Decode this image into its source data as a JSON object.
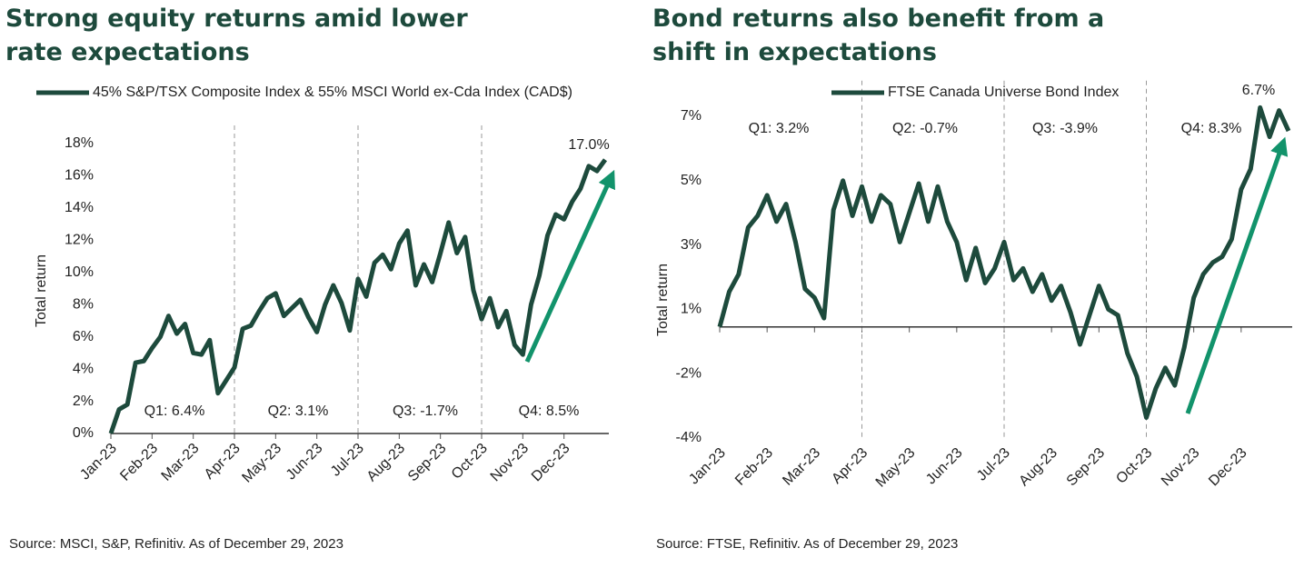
{
  "chart_data": [
    {
      "type": "line",
      "title": "Strong equity returns amid lower rate expectations",
      "ylabel": "Total return",
      "xlim": [
        0,
        12
      ],
      "xticks": [
        {
          "value": 0,
          "label": "Jan-23"
        },
        {
          "value": 1,
          "label": "Feb-23"
        },
        {
          "value": 2,
          "label": "Mar-23"
        },
        {
          "value": 3,
          "label": "Apr-23"
        },
        {
          "value": 4,
          "label": "May-23"
        },
        {
          "value": 5,
          "label": "Jun-23"
        },
        {
          "value": 6,
          "label": "Jul-23"
        },
        {
          "value": 7,
          "label": "Aug-23"
        },
        {
          "value": 8,
          "label": "Sep-23"
        },
        {
          "value": 9,
          "label": "Oct-23"
        },
        {
          "value": 10,
          "label": "Nov-23"
        },
        {
          "value": 11,
          "label": "Dec-23"
        }
      ],
      "ylim": [
        0,
        18
      ],
      "yticks": [
        {
          "value": 0,
          "label": "0%"
        },
        {
          "value": 2,
          "label": "2%"
        },
        {
          "value": 4,
          "label": "4%"
        },
        {
          "value": 6,
          "label": "6%"
        },
        {
          "value": 8,
          "label": "8%"
        },
        {
          "value": 10,
          "label": "10%"
        },
        {
          "value": 12,
          "label": "12%"
        },
        {
          "value": 14,
          "label": "14%"
        },
        {
          "value": 16,
          "label": "16%"
        },
        {
          "value": 18,
          "label": "18%"
        }
      ],
      "series": [
        {
          "name": "45% S&P/TSX Composite Index & 55% MSCI World ex-Cda Index (CAD$)",
          "color": "#1d4a3c",
          "x": [
            0,
            0.2,
            0.4,
            0.6,
            0.8,
            1,
            1.2,
            1.4,
            1.6,
            1.8,
            2,
            2.2,
            2.4,
            2.6,
            2.8,
            3,
            3.2,
            3.4,
            3.6,
            3.8,
            4,
            4.2,
            4.4,
            4.6,
            4.8,
            5,
            5.2,
            5.4,
            5.6,
            5.8,
            6,
            6.2,
            6.4,
            6.6,
            6.8,
            7,
            7.2,
            7.4,
            7.6,
            7.8,
            8,
            8.2,
            8.4,
            8.6,
            8.8,
            9,
            9.2,
            9.4,
            9.6,
            9.8,
            10,
            10.2,
            10.4,
            10.6,
            10.8,
            11,
            11.2,
            11.4,
            11.6,
            11.8,
            12
          ],
          "values": [
            0,
            1.5,
            1.8,
            4.4,
            4.5,
            5.3,
            6.0,
            7.3,
            6.2,
            6.8,
            5.0,
            4.9,
            5.8,
            2.5,
            3.3,
            4.1,
            6.5,
            6.7,
            7.6,
            8.4,
            8.7,
            7.3,
            7.8,
            8.3,
            7.2,
            6.3,
            8.0,
            9.2,
            8.1,
            6.4,
            9.6,
            8.5,
            10.6,
            11.1,
            10.2,
            11.8,
            12.6,
            9.2,
            10.5,
            9.4,
            11.2,
            13.1,
            11.2,
            12.2,
            8.9,
            7.1,
            8.4,
            6.6,
            7.6,
            5.5,
            4.9,
            8.0,
            9.8,
            12.3,
            13.6,
            13.3,
            14.4,
            15.2,
            16.6,
            16.3,
            17.0
          ]
        }
      ],
      "annotations": [
        "Q1: 6.4%",
        "Q2: 3.1%",
        "Q3: -1.7%",
        "Q4: 8.5%",
        "17.0%"
      ],
      "source": "Source: MSCI, S&P, Refinitiv. As of December 29, 2023"
    },
    {
      "type": "line",
      "title": "Bond returns also benefit from a shift in expectations",
      "ylabel": "Total return",
      "xlim": [
        0,
        12
      ],
      "xticks": [
        {
          "value": 0,
          "label": "Jan-23"
        },
        {
          "value": 1,
          "label": "Feb-23"
        },
        {
          "value": 2,
          "label": "Mar-23"
        },
        {
          "value": 3,
          "label": "Apr-23"
        },
        {
          "value": 4,
          "label": "May-23"
        },
        {
          "value": 5,
          "label": "Jun-23"
        },
        {
          "value": 6,
          "label": "Jul-23"
        },
        {
          "value": 7,
          "label": "Aug-23"
        },
        {
          "value": 8,
          "label": "Sep-23"
        },
        {
          "value": 9,
          "label": "Oct-23"
        },
        {
          "value": 10,
          "label": "Nov-23"
        },
        {
          "value": 11,
          "label": "Dec-23"
        }
      ],
      "ylim": [
        -3.8,
        7.8
      ],
      "yticks": [
        {
          "value": -3.8,
          "label": "-4%"
        },
        {
          "value": -1.6,
          "label": "-2%"
        },
        {
          "value": 0.6,
          "label": "1%"
        },
        {
          "value": 2.8,
          "label": "3%"
        },
        {
          "value": 5.0,
          "label": "5%"
        },
        {
          "value": 7.2,
          "label": "7%"
        }
      ],
      "series": [
        {
          "name": "FTSE Canada Universe Bond Index",
          "color": "#1d4a3c",
          "x": [
            0,
            0.2,
            0.4,
            0.6,
            0.8,
            1,
            1.2,
            1.4,
            1.6,
            1.8,
            2,
            2.2,
            2.4,
            2.6,
            2.8,
            3,
            3.2,
            3.4,
            3.6,
            3.8,
            4,
            4.2,
            4.4,
            4.6,
            4.8,
            5,
            5.2,
            5.4,
            5.6,
            5.8,
            6,
            6.2,
            6.4,
            6.6,
            6.8,
            7,
            7.2,
            7.4,
            7.6,
            7.8,
            8,
            8.2,
            8.4,
            8.6,
            8.8,
            9,
            9.2,
            9.4,
            9.6,
            9.8,
            10,
            10.2,
            10.4,
            10.6,
            10.8,
            11,
            11.2,
            11.4,
            11.6,
            11.8,
            12
          ],
          "values": [
            0,
            1.2,
            1.8,
            3.4,
            3.8,
            4.5,
            3.6,
            4.2,
            2.9,
            1.3,
            1.0,
            0.3,
            4.0,
            5.0,
            3.8,
            4.8,
            3.6,
            4.5,
            4.2,
            2.9,
            3.9,
            4.9,
            3.6,
            4.8,
            3.6,
            2.9,
            1.6,
            2.7,
            1.5,
            2.0,
            2.9,
            1.6,
            2.0,
            1.2,
            1.8,
            0.9,
            1.4,
            0.5,
            -0.6,
            0.4,
            1.4,
            0.6,
            0.4,
            -0.9,
            -1.7,
            -3.1,
            -2.1,
            -1.4,
            -2.0,
            -0.7,
            1.0,
            1.8,
            2.2,
            2.4,
            3.0,
            4.7,
            5.4,
            7.5,
            6.5,
            7.4,
            6.7
          ]
        }
      ],
      "annotations": [
        "Q1: 3.2%",
        "Q2: -0.7%",
        "Q3: -3.9%",
        "Q4: 8.3%",
        "6.7%"
      ],
      "source": "Source: FTSE, Refinitiv. As of December 29, 2023"
    }
  ]
}
